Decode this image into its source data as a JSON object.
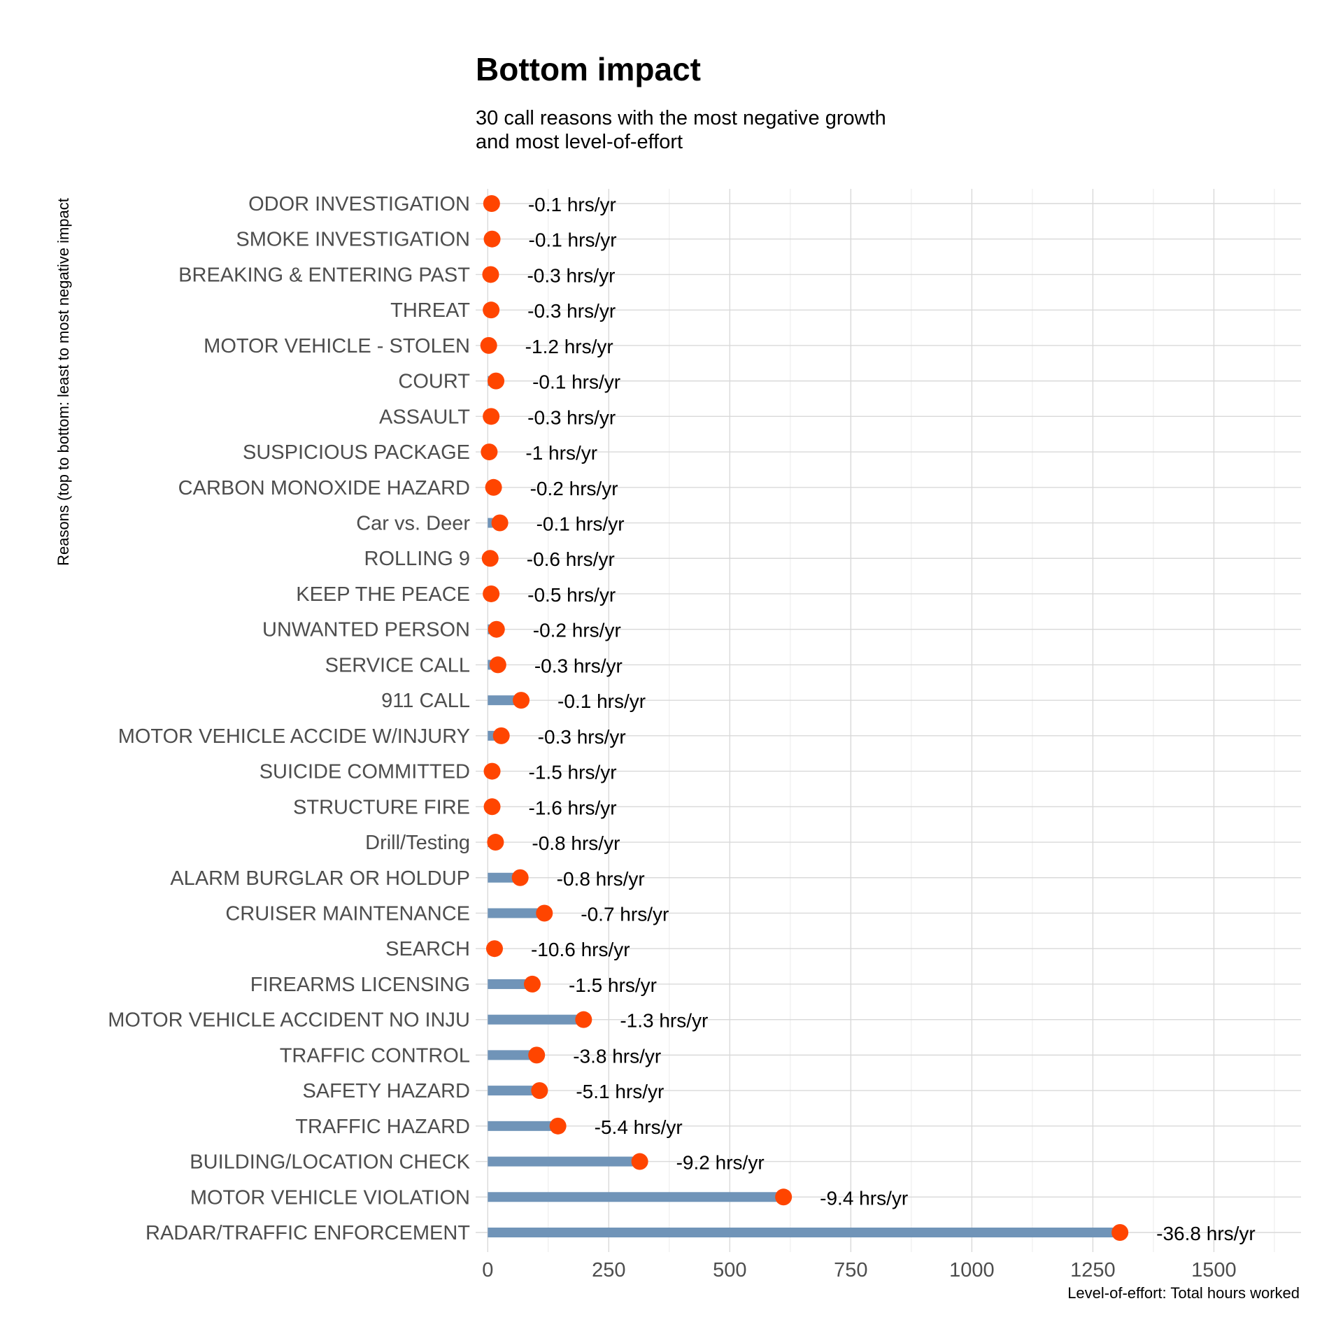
{
  "chart_data": {
    "type": "lollipop",
    "title": "Bottom impact",
    "subtitle": [
      "30 call reasons with the most negative growth",
      "and most level-of-effort"
    ],
    "xlabel": "Level-of-effort: Total hours worked",
    "ylabel": "Reasons (top to bottom: least to most negative impact",
    "xlim": [
      -25,
      1680
    ],
    "xticks": [
      0,
      250,
      500,
      750,
      1000,
      1250,
      1500
    ],
    "grid": true,
    "colors": {
      "bar": "#7094b8",
      "point": "#ff4500"
    },
    "categories": [
      "ODOR INVESTIGATION",
      "SMOKE INVESTIGATION",
      "BREAKING & ENTERING PAST",
      "THREAT",
      "MOTOR VEHICLE - STOLEN",
      "COURT",
      "ASSAULT",
      "SUSPICIOUS PACKAGE",
      "CARBON MONOXIDE HAZARD",
      "Car vs. Deer",
      "ROLLING 9",
      "KEEP THE PEACE",
      "UNWANTED PERSON",
      "SERVICE CALL",
      "911 CALL",
      "MOTOR VEHICLE ACCIDE W/INJURY",
      "SUICIDE COMMITTED",
      "STRUCTURE FIRE",
      "Drill/Testing",
      "ALARM BURGLAR OR HOLDUP",
      "CRUISER MAINTENANCE",
      "SEARCH",
      "FIREARMS LICENSING",
      "MOTOR VEHICLE ACCIDENT NO INJU",
      "TRAFFIC CONTROL",
      "SAFETY HAZARD",
      "TRAFFIC HAZARD",
      "BUILDING/LOCATION CHECK",
      "MOTOR VEHICLE VIOLATION",
      "RADAR/TRAFFIC ENFORCEMENT"
    ],
    "values": [
      8,
      9,
      6,
      7,
      2,
      17,
      7,
      3,
      12,
      25,
      5,
      7,
      18,
      21,
      69,
      28,
      9,
      9,
      16,
      67,
      117,
      14,
      92,
      198,
      101,
      107,
      145,
      314,
      611,
      1306
    ],
    "labels": [
      "-0.1 hrs/yr",
      "-0.1 hrs/yr",
      "-0.3 hrs/yr",
      "-0.3 hrs/yr",
      "-1.2 hrs/yr",
      "-0.1 hrs/yr",
      "-0.3 hrs/yr",
      "-1 hrs/yr",
      "-0.2 hrs/yr",
      "-0.1 hrs/yr",
      "-0.6 hrs/yr",
      "-0.5 hrs/yr",
      "-0.2 hrs/yr",
      "-0.3 hrs/yr",
      "-0.1 hrs/yr",
      "-0.3 hrs/yr",
      "-1.5 hrs/yr",
      "-1.6 hrs/yr",
      "-0.8 hrs/yr",
      "-0.8 hrs/yr",
      "-0.7 hrs/yr",
      "-10.6 hrs/yr",
      "-1.5 hrs/yr",
      "-1.3 hrs/yr",
      "-3.8 hrs/yr",
      "-5.1 hrs/yr",
      "-5.4 hrs/yr",
      "-9.2 hrs/yr",
      "-9.4 hrs/yr",
      "-36.8 hrs/yr"
    ]
  }
}
